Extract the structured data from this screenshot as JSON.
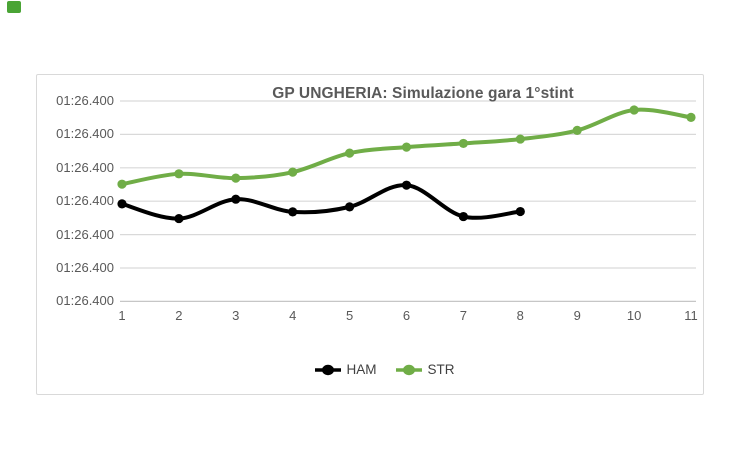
{
  "badge": {
    "color": "#4aa435"
  },
  "chart_data": {
    "type": "line",
    "title": "GP UNGHERIA: Simulazione gara 1°stint",
    "x": [
      1,
      2,
      3,
      4,
      5,
      6,
      7,
      8,
      9,
      10,
      11
    ],
    "x_tick_labels": [
      "1",
      "2",
      "3",
      "4",
      "5",
      "6",
      "7",
      "8",
      "9",
      "10",
      "11"
    ],
    "y_tick_labels": [
      "01:26.400",
      "01:26.400",
      "01:26.400",
      "01:26.400",
      "01:26.400",
      "01:26.400",
      "01:26.400"
    ],
    "y_axis_note": "all seven visible y-axis tick labels read the same value 01:26.400; series values below are estimated in gridline units (0 = bottom gridline, 6 = top gridline)",
    "ylim_gridline_units": [
      0,
      6
    ],
    "grid": true,
    "smoothed_lines": true,
    "marker": "circle",
    "legend_position": "bottom",
    "series": [
      {
        "name": "HAM",
        "color": "#000000",
        "laps": [
          1,
          2,
          3,
          4,
          5,
          6,
          7,
          8
        ],
        "values_gridline_units": [
          2.92,
          2.48,
          3.06,
          2.68,
          2.83,
          3.48,
          2.54,
          2.69
        ]
      },
      {
        "name": "STR",
        "color": "#70ad47",
        "laps": [
          1,
          2,
          3,
          4,
          5,
          6,
          7,
          8,
          9,
          10,
          11
        ],
        "values_gridline_units": [
          3.51,
          3.82,
          3.69,
          3.87,
          4.44,
          4.62,
          4.73,
          4.86,
          5.12,
          5.73,
          5.51
        ]
      }
    ]
  },
  "styles": {
    "gridline_color": "#d9d9d9",
    "axis_line_color": "#c6c6c6",
    "frame_border_color": "#d9d9d9",
    "title_color": "#595959",
    "tick_label_color": "#595959",
    "legend_text_color": "#404040"
  }
}
